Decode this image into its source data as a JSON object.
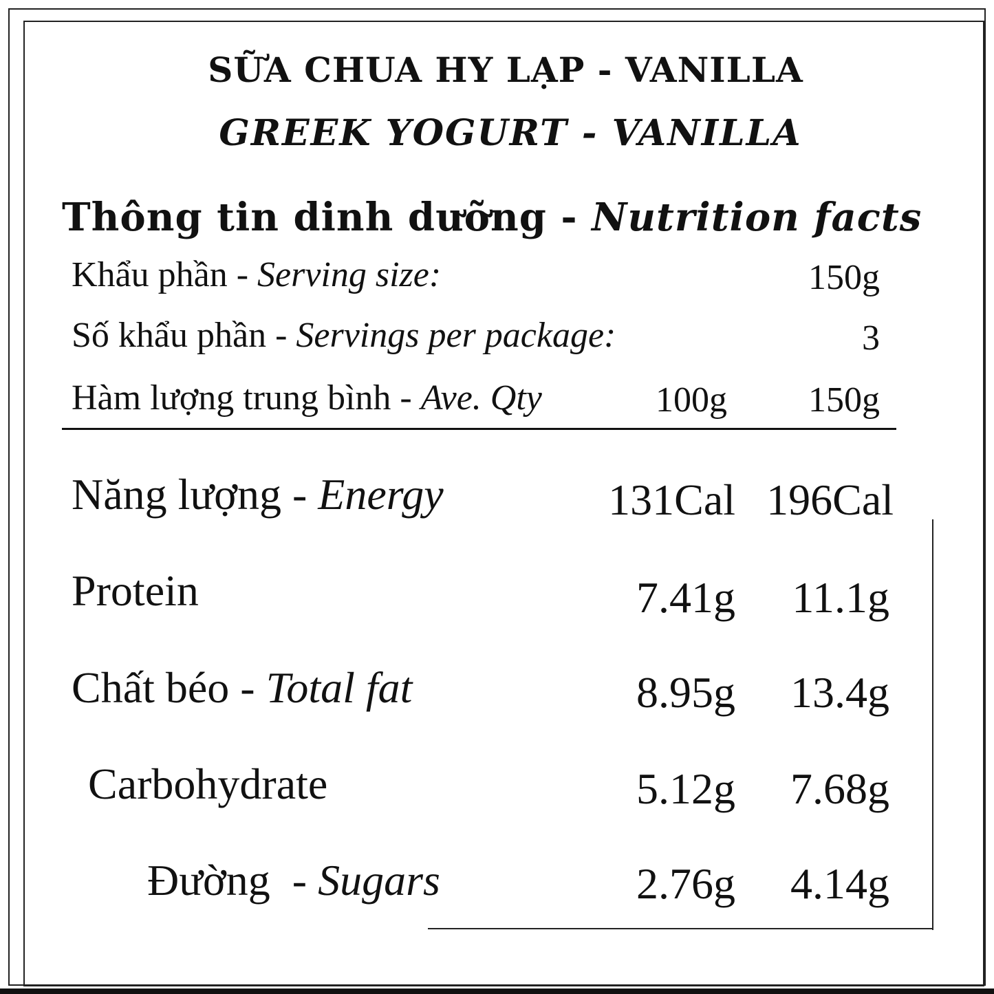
{
  "title_vi": "SỮA CHUA HY LẠP - VANILLA",
  "title_en": "GREEK YOGURT - VANILLA",
  "heading": {
    "vi": "Thông tin dinh dưỡng - ",
    "en": "Nutrition facts"
  },
  "serving": {
    "size_label_vi": "Khẩu phần - ",
    "size_label_en": "Serving size:",
    "size_value": "150g",
    "per_package_label_vi": "Số khẩu phần - ",
    "per_package_label_en": "Servings per package:",
    "per_package_value": "3",
    "avg_label_vi": "Hàm lượng trung bình - ",
    "avg_label_en": "Ave. Qty",
    "col_100g": "100g",
    "col_150g": "150g"
  },
  "nutrients": [
    {
      "label_vi": "Năng lượng - ",
      "label_en": "Energy",
      "per100": "131Cal",
      "per150": "196Cal"
    },
    {
      "label_vi": "Protein",
      "label_en": "",
      "per100": "7.41g",
      "per150": "11.1g"
    },
    {
      "label_vi": "Chất béo - ",
      "label_en": "Total fat",
      "per100": "8.95g",
      "per150": "13.4g"
    },
    {
      "label_vi": "Carbohydrate",
      "label_en": "",
      "per100": "5.12g",
      "per150": "7.68g"
    },
    {
      "label_vi": "Đường  - ",
      "label_en": "Sugars",
      "per100": "2.76g",
      "per150": "4.14g"
    }
  ]
}
